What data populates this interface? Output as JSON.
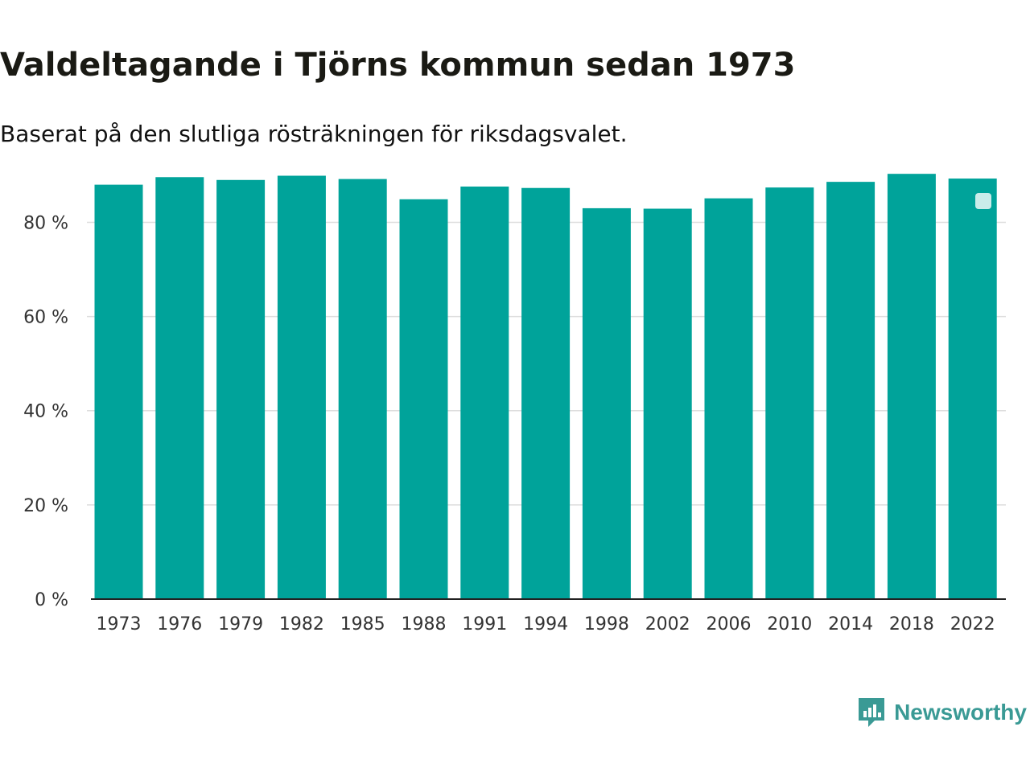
{
  "chart_data": {
    "type": "bar",
    "title": "Valdeltagande i Tjörns kommun sedan 1973",
    "subtitle": "Baserat på den slutliga rösträkningen för riksdagsvalet.",
    "xlabel": "",
    "ylabel": "",
    "categories": [
      "1973",
      "1976",
      "1979",
      "1982",
      "1985",
      "1988",
      "1991",
      "1994",
      "1998",
      "2002",
      "2006",
      "2010",
      "2014",
      "2018",
      "2022"
    ],
    "values": [
      88.0,
      89.6,
      89.0,
      89.9,
      89.2,
      84.9,
      87.6,
      87.3,
      83.0,
      82.9,
      85.1,
      87.4,
      88.6,
      90.3,
      89.3
    ],
    "ylim": [
      0,
      90.5
    ],
    "yticks": [
      0,
      20,
      40,
      60,
      80
    ],
    "ytick_labels": [
      "0 %",
      "20 %",
      "40 %",
      "60 %",
      "80 %"
    ],
    "grid": true,
    "legend": "top-right",
    "colors": {
      "bar": "#00a39a",
      "legend_marker": "#c9ecea",
      "grid": "#dddddd",
      "axis": "#222222"
    }
  },
  "brand": {
    "name": "Newsworthy",
    "icon": "bar-chart-speech-bubble-icon",
    "color": "#3a9a95"
  }
}
